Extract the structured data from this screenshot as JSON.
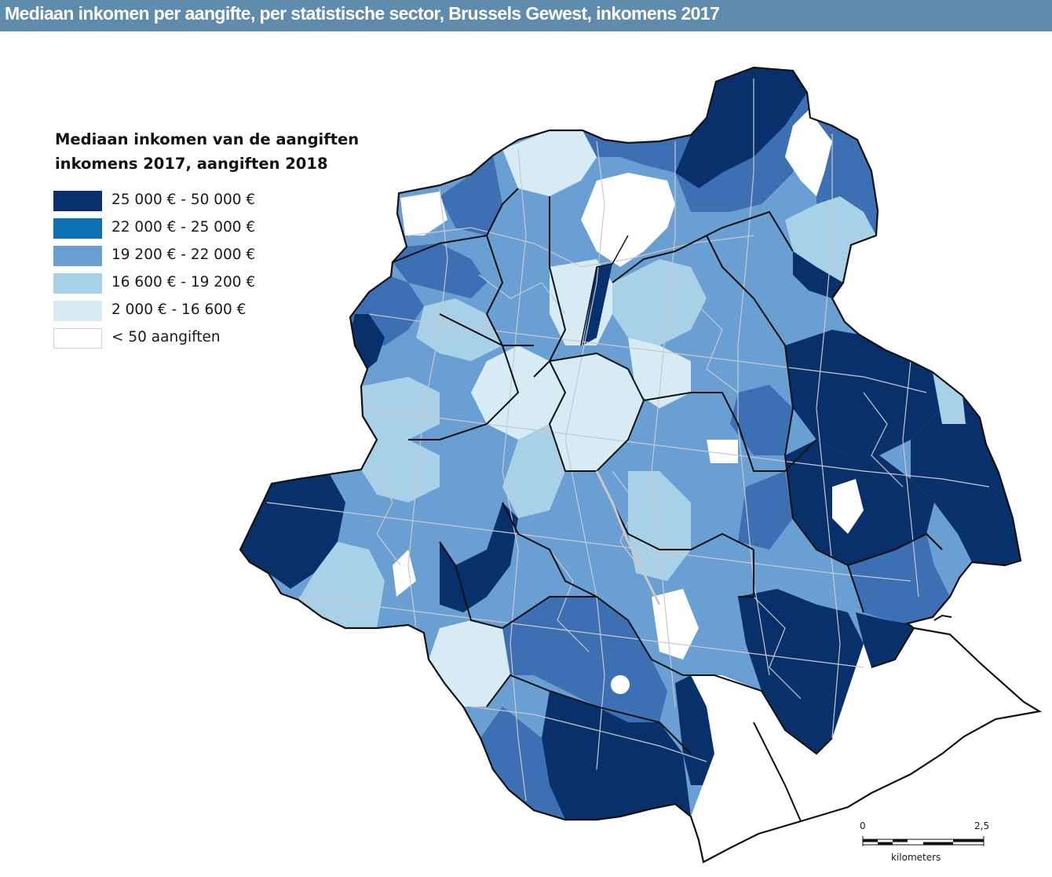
{
  "title": "Mediaan inkomen per aangifte, per statistische sector, Brussels Gewest, inkomens 2017",
  "legend": {
    "title_line1": "Mediaan inkomen van de aangiften",
    "title_line2": "inkomens 2017, aangiften 2018",
    "items": [
      {
        "label": "25 000 € - 50 000 €",
        "color": "#08306b"
      },
      {
        "label": "22 000 € - 25 000 €",
        "color": "#0b6fb0"
      },
      {
        "label": "19 200 € - 22 000 €",
        "color": "#6a9fd3"
      },
      {
        "label": "16 600 € - 19 200 €",
        "color": "#a8d0e6"
      },
      {
        "label": "2 000 € - 16 600 €",
        "color": "#d7ebf5"
      },
      {
        "label": "< 50 aangiften",
        "color": "#ffffff"
      }
    ]
  },
  "scalebar": {
    "start": "0",
    "end": "2,5",
    "unit": "kilometers"
  },
  "colors": {
    "title_bar": "#5f8cad",
    "title_text": "#ffffff",
    "boundary": "#111111",
    "sector_border": "#c9c9c9"
  }
}
